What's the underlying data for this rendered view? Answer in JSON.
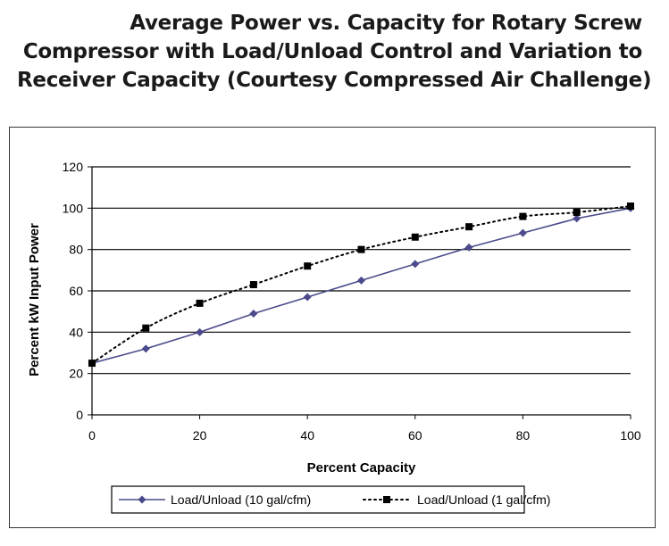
{
  "title_lines": [
    "Average Power vs. Capacity for Rotary Screw",
    "Compressor with Load/Unload Control and Variation to",
    "Receiver Capacity (Courtesy Compressed Air Challenge)"
  ],
  "chart_data": {
    "type": "line",
    "title": "Average Power vs. Capacity for Rotary Screw Compressor with Load/Unload Control and Variation to Receiver Capacity (Courtesy Compressed Air Challenge)",
    "xlabel": "Percent Capacity",
    "ylabel": "Percent kW Input Power",
    "xlim": [
      0,
      100
    ],
    "ylim": [
      0,
      120
    ],
    "xticks": [
      0,
      20,
      40,
      60,
      80,
      100
    ],
    "yticks": [
      0,
      20,
      40,
      60,
      80,
      100,
      120
    ],
    "grid": "horizontal",
    "legend_position": "bottom",
    "series": [
      {
        "name": "Load/Unload (10 gal/cfm)",
        "color": "#4a4a8c",
        "marker": "diamond",
        "line_style": "solid",
        "x": [
          0,
          10,
          20,
          30,
          40,
          50,
          60,
          70,
          80,
          90,
          100
        ],
        "y": [
          25,
          32,
          40,
          49,
          57,
          65,
          73,
          81,
          88,
          95,
          100
        ]
      },
      {
        "name": "Load/Unload (1 gal/cfm)",
        "color": "#000000",
        "marker": "square",
        "line_style": "dotted",
        "x": [
          0,
          10,
          20,
          30,
          40,
          50,
          60,
          70,
          80,
          90,
          100
        ],
        "y": [
          25,
          42,
          54,
          63,
          72,
          80,
          86,
          91,
          96,
          98,
          101
        ]
      }
    ]
  }
}
